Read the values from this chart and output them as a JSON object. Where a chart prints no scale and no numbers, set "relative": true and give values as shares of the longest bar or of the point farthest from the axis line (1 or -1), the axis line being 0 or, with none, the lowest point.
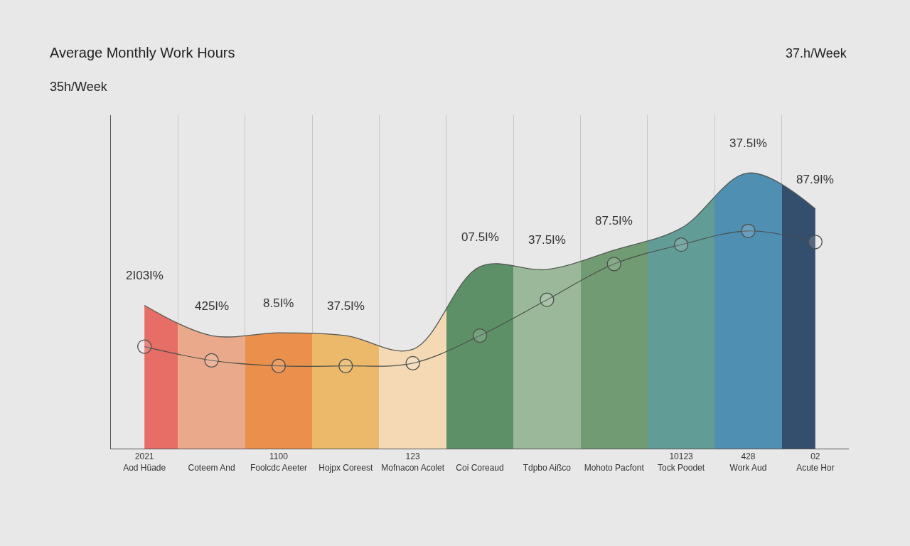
{
  "chart_data": {
    "type": "area",
    "title": "Average Monthly Work Hours",
    "subtitle": "35h/Week",
    "relative": true,
    "annotations": [
      "37.h/Week",
      {
        "text": "2I03I%",
        "x": "2021\nAod Hüade",
        "y": 0.52
      },
      {
        "text": "425I%",
        "x": "Coteem And",
        "y": 0.41
      },
      {
        "text": "8.5I%",
        "x": "1100\nFoolcdc Aeeter",
        "y": 0.42
      },
      {
        "text": "37.5I%",
        "x": "Hojpx Coreest",
        "y": 0.41
      },
      {
        "text": "07.5I%",
        "x": "Coi Coreaud",
        "y": 0.66
      },
      {
        "text": "37.5I%",
        "x": "Tdpbo Aißco",
        "y": 0.65
      },
      {
        "text": "87.5I%",
        "x": "Mohoto Pacfont",
        "y": 0.72
      },
      {
        "text": "37.5I%",
        "x": "428\nWork Aud",
        "y": 1.0
      },
      {
        "text": "87.9I%",
        "x": "02\nAcute Hor",
        "y": 0.87
      }
    ],
    "categories": [
      "2021\nAod Hüade",
      "Coteem And",
      "1100\nFoolcdc Aeeter",
      "Hojpx Coreest",
      "123\nMofnacon Acolet",
      "Coi Coreaud",
      "Tdpbo Aißco",
      "Mohoto Pacfont",
      "10123\nTock Poodet",
      "428\nWork Aud",
      "02\nAcute Hor"
    ],
    "grid": "x",
    "series": [
      {
        "color": "#555a55",
        "colors": [
          "#e66e66",
          "#eaa98a",
          "#eb8f4c",
          "#ecb96a",
          "#f5d9b5",
          "#5e9068",
          "#9bb99a",
          "#719b73",
          "#629c96",
          "#4f8fb2",
          "#344e6e"
        ],
        "values": [
          0.52,
          0.41,
          0.42,
          0.41,
          0.36,
          0.66,
          0.65,
          0.72,
          0.8,
          1.0,
          0.87
        ]
      },
      {
        "type": "line",
        "color": "#4a4f4a",
        "marker": "circle",
        "values": [
          0.37,
          0.32,
          0.3,
          0.3,
          0.31,
          0.41,
          0.54,
          0.67,
          0.74,
          0.79,
          0.75
        ]
      }
    ]
  }
}
